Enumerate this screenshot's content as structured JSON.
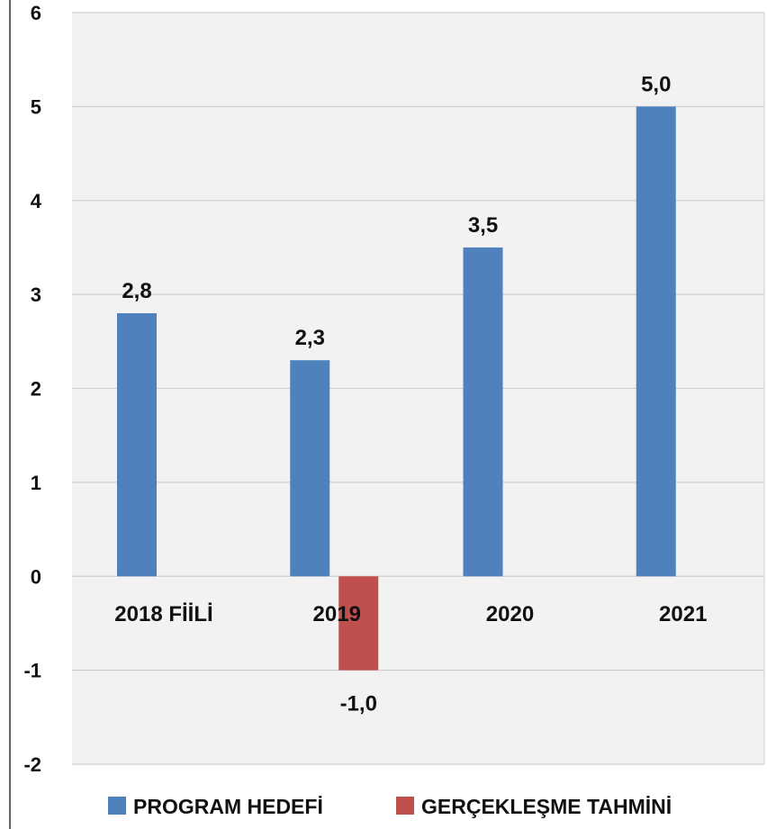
{
  "chart_data": {
    "type": "bar",
    "categories": [
      "2018 FİİLİ",
      "2019",
      "2020",
      "2021"
    ],
    "series": [
      {
        "name": "PROGRAM HEDEFİ",
        "color": "#4f81bd",
        "values": [
          2.8,
          2.3,
          3.5,
          5.0
        ]
      },
      {
        "name": "GERÇEKLEŞME TAHMİNİ",
        "color": "#c0504d",
        "values": [
          null,
          -1.0,
          null,
          null
        ]
      }
    ],
    "data_labels": [
      [
        "2,8",
        "2,3",
        "3,5",
        "5,0"
      ],
      [
        null,
        "-1,0",
        null,
        null
      ]
    ],
    "ylim": [
      -2,
      6
    ],
    "yticks": [
      -2,
      -1,
      0,
      1,
      2,
      3,
      4,
      5,
      6
    ],
    "ytick_labels": [
      "-2",
      "-1",
      "0",
      "1",
      "2",
      "3",
      "4",
      "5",
      "6"
    ],
    "grid": true,
    "legend": "bottom",
    "title": "",
    "xlabel": "",
    "ylabel": ""
  }
}
